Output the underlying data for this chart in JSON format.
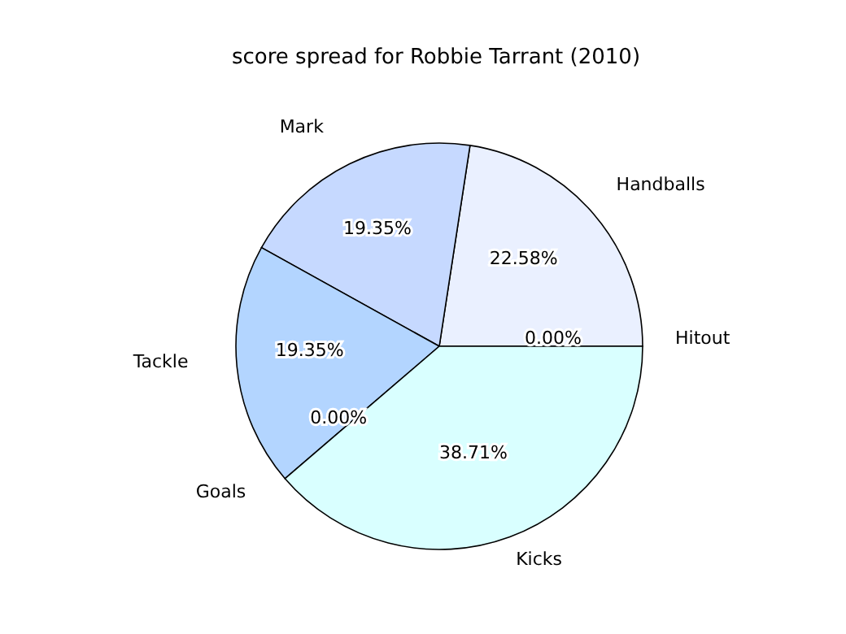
{
  "chart_data": {
    "type": "pie",
    "title": "score spread for Robbie Tarrant (2010)",
    "categories": [
      "Handballs",
      "Mark",
      "Tackle",
      "Goals",
      "Kicks",
      "Hitout"
    ],
    "values": [
      22.58,
      19.35,
      19.35,
      0,
      38.71,
      0
    ],
    "colors": [
      "#eaf0ff",
      "#c6d9ff",
      "#b3d5ff",
      "#b3d5ff",
      "#d9ffff",
      "#eaf0ff"
    ],
    "value_labels": [
      "22.58%",
      "19.35%",
      "19.35%",
      "0.00%",
      "38.71%",
      "0.00%"
    ],
    "legend": false
  }
}
